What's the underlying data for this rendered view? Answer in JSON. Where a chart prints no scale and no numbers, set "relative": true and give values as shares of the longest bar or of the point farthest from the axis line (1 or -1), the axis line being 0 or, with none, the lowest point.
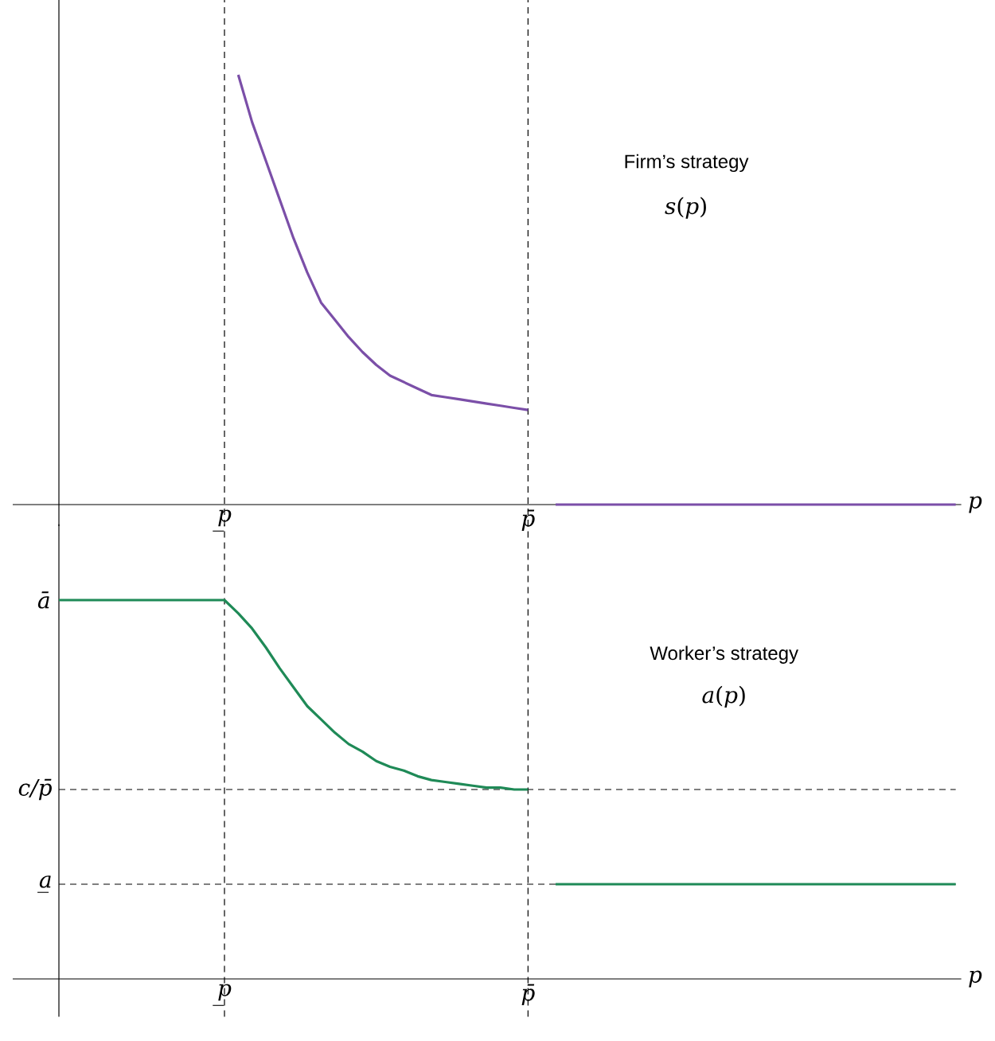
{
  "chart_data": [
    {
      "type": "line",
      "relative": true,
      "xlabel": "p",
      "categories": [
        null,
        null,
        null,
        null,
        null,
        null,
        null,
        null,
        null,
        null,
        null,
        null,
        "p̲",
        null,
        null,
        null,
        null,
        null,
        null,
        null,
        null,
        null,
        null,
        null,
        null,
        null,
        null,
        null,
        null,
        null,
        null,
        null,
        null,
        null,
        "p̄",
        null,
        null,
        null,
        null,
        null,
        null,
        null,
        null,
        null,
        null,
        null,
        null,
        null,
        null,
        null,
        null,
        null,
        null,
        null,
        null,
        null,
        null,
        null,
        null,
        null,
        null,
        null,
        null,
        null,
        null,
        null
      ],
      "annotations": [
        "Firm’s strategy",
        "*s*(*p*)"
      ],
      "ref_lines": [
        {
          "axis": "x",
          "value": "p̲",
          "line_style": "dashed"
        },
        {
          "axis": "x",
          "value": "p̄",
          "line_style": "dashed"
        }
      ],
      "series": [
        {
          "color": "#7b4fa8",
          "values": [
            null,
            null,
            null,
            null,
            null,
            null,
            null,
            null,
            null,
            null,
            null,
            null,
            null,
            1.0,
            0.89,
            0.8,
            0.71,
            0.62,
            0.54,
            0.47,
            0.43,
            0.39,
            0.355,
            0.325,
            0.3,
            0.285,
            0.27,
            0.255,
            0.25,
            0.245,
            0.24,
            0.235,
            0.23,
            0.225,
            0.22,
            null,
            0,
            0,
            0,
            0,
            0,
            0,
            0,
            0,
            0,
            0,
            0,
            0,
            0,
            0,
            0,
            0,
            0,
            0,
            0,
            0,
            0,
            0,
            0,
            0,
            0,
            0,
            0,
            0,
            0,
            0
          ]
        }
      ]
    },
    {
      "type": "line",
      "relative": true,
      "xlabel": "p",
      "categories": [
        null,
        null,
        null,
        null,
        null,
        null,
        null,
        null,
        null,
        null,
        null,
        null,
        "p̲",
        null,
        null,
        null,
        null,
        null,
        null,
        null,
        null,
        null,
        null,
        null,
        null,
        null,
        null,
        null,
        null,
        null,
        null,
        null,
        null,
        null,
        "p̄",
        null,
        null,
        null,
        null,
        null,
        null,
        null,
        null,
        null,
        null,
        null,
        null,
        null,
        null,
        null,
        null,
        null,
        null,
        null,
        null,
        null,
        null,
        null,
        null,
        null,
        null,
        null,
        null,
        null,
        null,
        null
      ],
      "annotations": [
        "Worker’s strategy",
        "*a*(*p*)",
        "ā"
      ],
      "ref_lines": [
        {
          "axis": "x",
          "value": "p̲",
          "line_style": "dashed"
        },
        {
          "axis": "x",
          "value": "p̄",
          "line_style": "dashed"
        },
        {
          "axis": "y",
          "value": 0.5,
          "label": "c/p̄",
          "line_style": "dashed"
        },
        {
          "axis": "y",
          "value": 0.25,
          "label": "a̲",
          "line_style": "dashed"
        }
      ],
      "series": [
        {
          "color": "#1f8a57",
          "values": [
            1.0,
            1.0,
            1.0,
            1.0,
            1.0,
            1.0,
            1.0,
            1.0,
            1.0,
            1.0,
            1.0,
            1.0,
            1.0,
            0.965,
            0.925,
            0.875,
            0.82,
            0.77,
            0.72,
            0.685,
            0.65,
            0.62,
            0.6,
            0.575,
            0.56,
            0.55,
            0.535,
            0.525,
            0.52,
            0.515,
            0.51,
            0.505,
            0.505,
            0.5,
            0.5,
            null,
            0.25,
            0.25,
            0.25,
            0.25,
            0.25,
            0.25,
            0.25,
            0.25,
            0.25,
            0.25,
            0.25,
            0.25,
            0.25,
            0.25,
            0.25,
            0.25,
            0.25,
            0.25,
            0.25,
            0.25,
            0.25,
            0.25,
            0.25,
            0.25,
            0.25,
            0.25,
            0.25,
            0.25,
            0.25,
            0.25
          ]
        }
      ]
    }
  ]
}
